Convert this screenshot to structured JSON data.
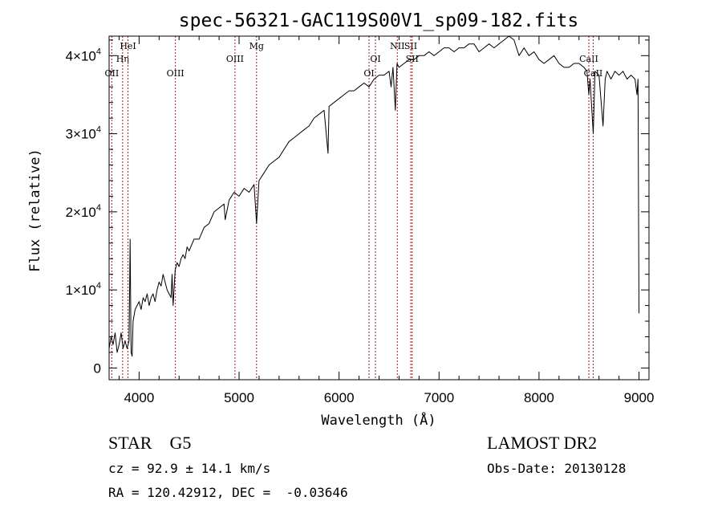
{
  "chart_data": {
    "type": "line",
    "title": "spec-56321-GAC119S00V1_sp09-182.fits",
    "xlabel": "Wavelength (Å)",
    "ylabel": "Flux (relative)",
    "xlim": [
      3700,
      9100
    ],
    "ylim": [
      -1500,
      42500
    ],
    "x_ticks": [
      {
        "value": 4000,
        "label": "4000"
      },
      {
        "value": 5000,
        "label": "5000"
      },
      {
        "value": 6000,
        "label": "6000"
      },
      {
        "value": 7000,
        "label": "7000"
      },
      {
        "value": 8000,
        "label": "8000"
      },
      {
        "value": 9000,
        "label": "9000"
      }
    ],
    "y_ticks": [
      {
        "value": 0,
        "label": "0",
        "exp": ""
      },
      {
        "value": 10000,
        "label": "1×10",
        "exp": "4"
      },
      {
        "value": 20000,
        "label": "2×10",
        "exp": "4"
      },
      {
        "value": 30000,
        "label": "3×10",
        "exp": "4"
      },
      {
        "value": 40000,
        "label": "4×10",
        "exp": "4"
      }
    ],
    "lines": [
      {
        "x": 3727,
        "label": "OII",
        "row": 3
      },
      {
        "x": 3835,
        "label": "Hη",
        "row": 2
      },
      {
        "x": 3889,
        "label": "HeI",
        "row": 1
      },
      {
        "x": 4363,
        "label": "OIII",
        "row": 3
      },
      {
        "x": 4959,
        "label": "OIII",
        "row": 2
      },
      {
        "x": 5175,
        "label": "Mg",
        "row": 1
      },
      {
        "x": 6300,
        "label": "OI",
        "row": 3
      },
      {
        "x": 6364,
        "label": "OI",
        "row": 2
      },
      {
        "x": 6583,
        "label": "NII",
        "row": 1
      },
      {
        "x": 6717,
        "label": "SII",
        "row": 1
      },
      {
        "x": 6731,
        "label": "SII",
        "row": 2
      },
      {
        "x": 8498,
        "label": "CaII",
        "row": 2
      },
      {
        "x": 8542,
        "label": "CaII",
        "row": 3
      }
    ],
    "series": [
      {
        "name": "flux",
        "x": [
          3700,
          3720,
          3740,
          3760,
          3780,
          3800,
          3820,
          3840,
          3860,
          3880,
          3900,
          3910,
          3920,
          3930,
          3940,
          3960,
          3980,
          4000,
          4020,
          4040,
          4060,
          4080,
          4100,
          4120,
          4140,
          4160,
          4180,
          4200,
          4220,
          4240,
          4260,
          4280,
          4300,
          4320,
          4330,
          4340,
          4360,
          4380,
          4400,
          4420,
          4440,
          4460,
          4480,
          4500,
          4550,
          4600,
          4650,
          4700,
          4750,
          4800,
          4850,
          4861,
          4900,
          4950,
          5000,
          5050,
          5100,
          5150,
          5175,
          5200,
          5250,
          5300,
          5350,
          5400,
          5450,
          5500,
          5550,
          5600,
          5650,
          5700,
          5750,
          5800,
          5850,
          5890,
          5900,
          5950,
          6000,
          6050,
          6100,
          6150,
          6200,
          6250,
          6300,
          6350,
          6400,
          6450,
          6500,
          6520,
          6540,
          6563,
          6580,
          6600,
          6650,
          6700,
          6750,
          6800,
          6850,
          6900,
          6950,
          7000,
          7050,
          7100,
          7150,
          7200,
          7250,
          7300,
          7350,
          7400,
          7450,
          7500,
          7550,
          7600,
          7650,
          7700,
          7750,
          7800,
          7850,
          7900,
          7950,
          8000,
          8050,
          8100,
          8150,
          8200,
          8250,
          8300,
          8350,
          8400,
          8450,
          8480,
          8498,
          8510,
          8542,
          8560,
          8600,
          8640,
          8662,
          8680,
          8720,
          8760,
          8800,
          8840,
          8880,
          8920,
          8960,
          8980,
          8990,
          9000
        ],
        "y": [
          2500,
          4000,
          3000,
          4500,
          2000,
          3000,
          4500,
          2500,
          3500,
          2500,
          3500,
          16500,
          2000,
          1500,
          6000,
          7500,
          8000,
          8500,
          7500,
          9000,
          8500,
          9500,
          8000,
          9000,
          9500,
          8500,
          10000,
          11000,
          10500,
          12000,
          11000,
          10000,
          9500,
          9000,
          12000,
          8000,
          12500,
          13500,
          13000,
          14000,
          14500,
          14000,
          15500,
          15000,
          16500,
          16500,
          18000,
          18500,
          20000,
          20500,
          21000,
          19000,
          21500,
          22500,
          22000,
          23000,
          22500,
          23500,
          18500,
          24000,
          25000,
          26000,
          26500,
          27000,
          28000,
          29000,
          29500,
          30000,
          30500,
          31000,
          32000,
          32500,
          33000,
          27500,
          33500,
          34000,
          34500,
          35000,
          35500,
          35500,
          36000,
          36500,
          36000,
          37000,
          37500,
          37500,
          38000,
          36000,
          38500,
          33000,
          39000,
          38500,
          39000,
          39500,
          39500,
          40000,
          40000,
          40500,
          40000,
          40500,
          41000,
          41000,
          40500,
          41000,
          41000,
          41500,
          41500,
          40500,
          41000,
          41500,
          41000,
          41500,
          42000,
          42500,
          42000,
          40000,
          41000,
          40000,
          40500,
          39500,
          39000,
          39500,
          40000,
          39000,
          38500,
          38500,
          39000,
          39000,
          38500,
          38000,
          35000,
          37000,
          30000,
          38000,
          37500,
          31000,
          37000,
          38000,
          37000,
          38000,
          37500,
          38000,
          37000,
          37500,
          37000,
          35000,
          37000,
          7000
        ]
      }
    ]
  },
  "info": {
    "class_line": "STAR    G5",
    "survey": "LAMOST DR2",
    "cz": "cz = 92.9 ± 14.1 km/s",
    "obs_date": "Obs-Date: 20130128",
    "coords": "RA = 120.42912, DEC =  -0.03646"
  }
}
